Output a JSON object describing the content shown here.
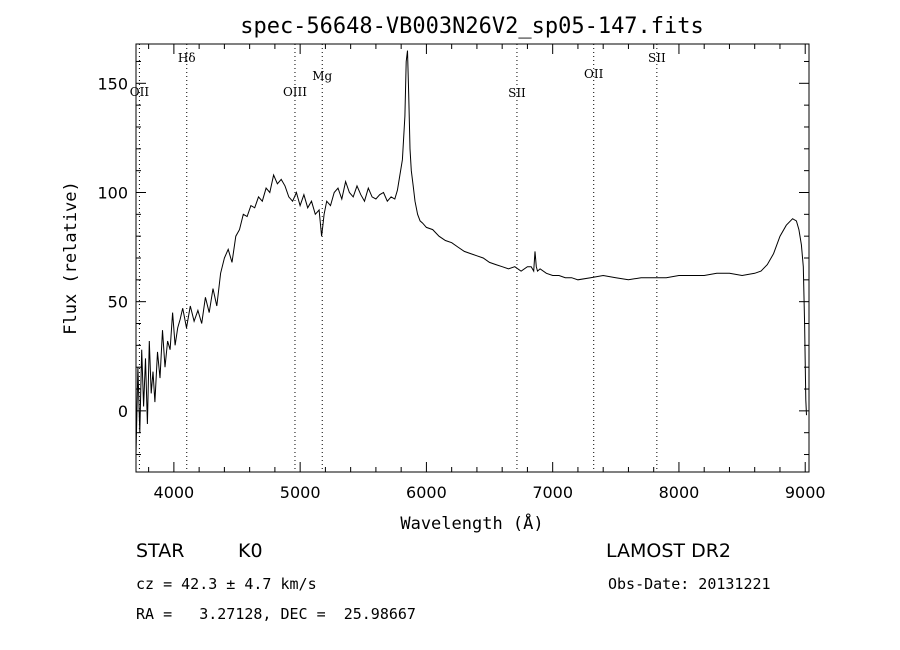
{
  "chart_data": {
    "type": "line",
    "title": "spec-56648-VB003N26V2_sp05-147.fits",
    "xlabel": "Wavelength (Å)",
    "ylabel": "Flux (relative)",
    "xlim": [
      3700,
      9030
    ],
    "ylim": [
      -28,
      168
    ],
    "xticks": [
      4000,
      5000,
      6000,
      7000,
      8000,
      9000
    ],
    "yticks": [
      0,
      50,
      100,
      150
    ],
    "grid": false,
    "series": [
      {
        "x": [
          3700,
          3715,
          3730,
          3745,
          3760,
          3775,
          3790,
          3805,
          3820,
          3835,
          3850,
          3870,
          3890,
          3910,
          3930,
          3950,
          3970,
          3990,
          4010,
          4030,
          4050,
          4070,
          4100,
          4130,
          4160,
          4190,
          4220,
          4250,
          4280,
          4310,
          4340,
          4370,
          4400,
          4430,
          4460,
          4490,
          4520,
          4550,
          4580,
          4610,
          4640,
          4670,
          4700,
          4730,
          4760,
          4790,
          4820,
          4850,
          4880,
          4910,
          4940,
          4970,
          5000,
          5030,
          5060,
          5090,
          5120,
          5150,
          5170,
          5180,
          5190,
          5210,
          5240,
          5270,
          5300,
          5330,
          5360,
          5390,
          5420,
          5450,
          5480,
          5510,
          5540,
          5570,
          5600,
          5630,
          5660,
          5690,
          5720,
          5750,
          5770,
          5790,
          5810,
          5830,
          5840,
          5850,
          5860,
          5870,
          5880,
          5895,
          5910,
          5930,
          5950,
          5970,
          6000,
          6050,
          6100,
          6150,
          6200,
          6250,
          6300,
          6350,
          6400,
          6450,
          6500,
          6550,
          6600,
          6650,
          6700,
          6750,
          6800,
          6830,
          6850,
          6860,
          6870,
          6880,
          6900,
          6950,
          7000,
          7050,
          7100,
          7150,
          7200,
          7300,
          7400,
          7500,
          7600,
          7700,
          7800,
          7900,
          8000,
          8100,
          8200,
          8300,
          8400,
          8500,
          8600,
          8650,
          8700,
          8750,
          8800,
          8850,
          8900,
          8930,
          8950,
          8970,
          8985,
          8995,
          9005,
          9010
        ],
        "y": [
          -20,
          20,
          -10,
          28,
          2,
          24,
          -6,
          32,
          8,
          18,
          4,
          27,
          15,
          37,
          20,
          32,
          28,
          45,
          30,
          38,
          42,
          47,
          38,
          48,
          41,
          46,
          40,
          52,
          45,
          56,
          48,
          63,
          70,
          74,
          68,
          80,
          83,
          90,
          89,
          94,
          93,
          98,
          96,
          102,
          100,
          108,
          104,
          106,
          103,
          98,
          96,
          100,
          94,
          99,
          93,
          96,
          90,
          92,
          80,
          85,
          90,
          96,
          94,
          100,
          102,
          97,
          105,
          100,
          98,
          103,
          99,
          96,
          102,
          98,
          97,
          99,
          100,
          96,
          98,
          97,
          101,
          108,
          115,
          135,
          160,
          165,
          145,
          120,
          110,
          103,
          96,
          90,
          87,
          86,
          84,
          83,
          80,
          78,
          77,
          75,
          73,
          72,
          71,
          70,
          68,
          67,
          66,
          65,
          66,
          64,
          66,
          66,
          64,
          73,
          66,
          64,
          65,
          63,
          62,
          62,
          61,
          61,
          60,
          61,
          62,
          61,
          60,
          61,
          61,
          61,
          62,
          62,
          62,
          63,
          63,
          62,
          63,
          64,
          67,
          72,
          80,
          85,
          88,
          87,
          83,
          76,
          66,
          40,
          5,
          -2
        ]
      }
    ],
    "spectral_lines": [
      {
        "label": "OII",
        "x": 3727
      },
      {
        "label": "Hδ",
        "x": 4102
      },
      {
        "label": "OIII",
        "x": 4959
      },
      {
        "label": "Mg",
        "x": 5175
      },
      {
        "label": "SII",
        "x": 6717
      },
      {
        "label": "OII",
        "x": 7325
      },
      {
        "label": "SII",
        "x": 7825
      }
    ]
  },
  "info": {
    "object_class": "STAR",
    "subclass": "K0",
    "survey": "LAMOST DR2",
    "velocity": "cz = 42.3 ± 4.7 km/s",
    "obs_date": "Obs-Date: 20131221",
    "coords": "RA =   3.27128, DEC =  25.98667"
  }
}
